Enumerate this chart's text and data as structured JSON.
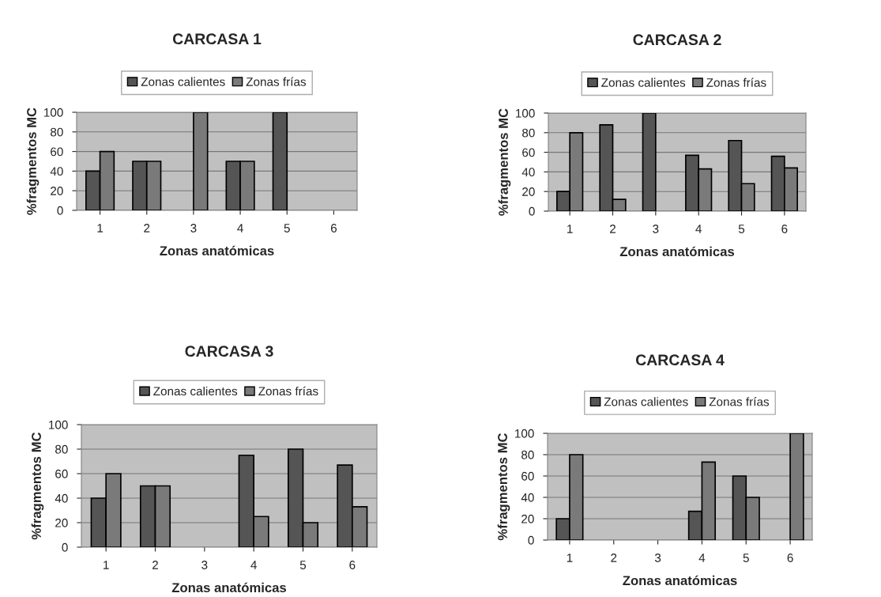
{
  "chart_data": [
    {
      "type": "bar",
      "title": "CARCASA 1",
      "xlabel": "Zonas anatómicas",
      "ylabel": "%fragmentos MC",
      "categories": [
        "1",
        "2",
        "3",
        "4",
        "5",
        "6"
      ],
      "series": [
        {
          "name": "Zonas calientes",
          "color": "#555555",
          "values": [
            40,
            50,
            null,
            50,
            100,
            null
          ]
        },
        {
          "name": "Zonas frías",
          "color": "#7a7a7a",
          "values": [
            60,
            50,
            100,
            50,
            null,
            null
          ]
        }
      ],
      "ylim": [
        0,
        100
      ],
      "yticks": [
        0,
        20,
        40,
        60,
        80,
        100
      ],
      "grid": "y",
      "legend": "top"
    },
    {
      "type": "bar",
      "title": "CARCASA 2",
      "xlabel": "Zonas anatómicas",
      "ylabel": "%fragmentos MC",
      "categories": [
        "1",
        "2",
        "3",
        "4",
        "5",
        "6"
      ],
      "series": [
        {
          "name": "Zonas calientes",
          "color": "#555555",
          "values": [
            20,
            88,
            100,
            57,
            72,
            56
          ]
        },
        {
          "name": "Zonas frías",
          "color": "#7a7a7a",
          "values": [
            80,
            12,
            null,
            43,
            28,
            44
          ]
        }
      ],
      "ylim": [
        0,
        100
      ],
      "yticks": [
        0,
        20,
        40,
        60,
        80,
        100
      ],
      "grid": "y",
      "legend": "top"
    },
    {
      "type": "bar",
      "title": "CARCASA 3",
      "xlabel": "Zonas anatómicas",
      "ylabel": "%fragmentos MC",
      "categories": [
        "1",
        "2",
        "3",
        "4",
        "5",
        "6"
      ],
      "series": [
        {
          "name": "Zonas calientes",
          "color": "#555555",
          "values": [
            40,
            50,
            null,
            75,
            80,
            67
          ]
        },
        {
          "name": "Zonas frías",
          "color": "#7a7a7a",
          "values": [
            60,
            50,
            null,
            25,
            20,
            33
          ]
        }
      ],
      "ylim": [
        0,
        100
      ],
      "yticks": [
        0,
        20,
        40,
        60,
        80,
        100
      ],
      "grid": "y",
      "legend": "top"
    },
    {
      "type": "bar",
      "title": "CARCASA 4",
      "xlabel": "Zonas anatómicas",
      "ylabel": "%fragmentos MC",
      "categories": [
        "1",
        "2",
        "3",
        "4",
        "5",
        "6"
      ],
      "series": [
        {
          "name": "Zonas calientes",
          "color": "#555555",
          "values": [
            20,
            null,
            null,
            27,
            60,
            null
          ]
        },
        {
          "name": "Zonas frías",
          "color": "#7a7a7a",
          "values": [
            80,
            null,
            null,
            73,
            40,
            100
          ]
        }
      ],
      "ylim": [
        0,
        100
      ],
      "yticks": [
        0,
        20,
        40,
        60,
        80,
        100
      ],
      "grid": "y",
      "legend": "top"
    }
  ]
}
